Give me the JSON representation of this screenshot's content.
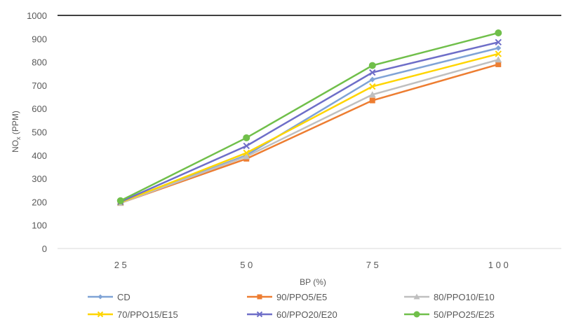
{
  "chart_data": {
    "type": "line",
    "title": "",
    "xlabel": "BP (%)",
    "ylabel_main": "NO",
    "ylabel_sub": "x",
    "ylabel_rest": " (PPM)",
    "categories": [
      "2 5",
      "5 0",
      "7 5",
      "1 0 0"
    ],
    "y_ticks": [
      "0",
      "100",
      "200",
      "300",
      "400",
      "500",
      "600",
      "700",
      "800",
      "900",
      "1000"
    ],
    "ylim": [
      0,
      1000
    ],
    "grid": false,
    "legend_position": "bottom",
    "series": [
      {
        "name": "CD",
        "values": [
          195,
          400,
          725,
          860
        ],
        "color": "#7FA3D6",
        "marker": "diamond"
      },
      {
        "name": "90/PPO5/E5",
        "values": [
          195,
          385,
          635,
          790
        ],
        "color": "#ED7D31",
        "marker": "square"
      },
      {
        "name": "80/PPO10/E10",
        "values": [
          195,
          395,
          660,
          810
        ],
        "color": "#BFBFBF",
        "marker": "triangle"
      },
      {
        "name": "70/PPO15/E15",
        "values": [
          198,
          410,
          695,
          835
        ],
        "color": "#FFD500",
        "marker": "x"
      },
      {
        "name": "60/PPO20/E20",
        "values": [
          200,
          440,
          755,
          885
        ],
        "color": "#6E6EC8",
        "marker": "x"
      },
      {
        "name": "50/PPO25/E25",
        "values": [
          205,
          475,
          785,
          925
        ],
        "color": "#70BF4A",
        "marker": "circle"
      }
    ]
  }
}
